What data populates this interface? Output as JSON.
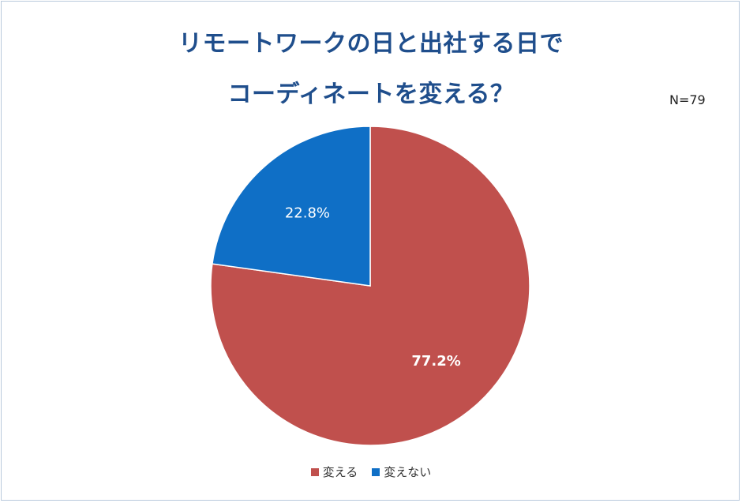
{
  "title_line1": "リモートワークの日と出社する日で",
  "title_line2": "コーディネートを変える？",
  "n_label": "N=79",
  "colors": {
    "title": "#1f4e8c"
  },
  "chart_data": {
    "type": "pie",
    "title": "リモートワークの日と出社する日でコーディネートを変える？",
    "categories": [
      "変える",
      "変えない"
    ],
    "values": [
      77.2,
      22.8
    ],
    "value_labels": [
      "77.2%",
      "22.8%"
    ],
    "colors": [
      "#c0504d",
      "#0f6fc6"
    ],
    "legend_position": "bottom",
    "start_angle_deg": 0,
    "direction": "clockwise"
  }
}
